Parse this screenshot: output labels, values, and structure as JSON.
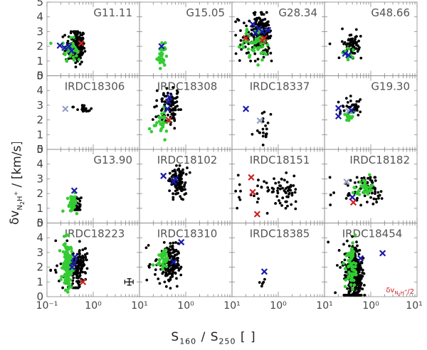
{
  "figure": {
    "xlabel": "S160 / S250 [ ]",
    "ylabel": "δv N2H+ / [km/s]",
    "xaxis_scale": "log",
    "xlim": [
      0.1,
      10
    ],
    "ylim": [
      0,
      5
    ],
    "x_tick_labels": [
      "10⁻¹",
      "10⁰",
      "10¹"
    ],
    "y_tick_labels": [
      "0",
      "1",
      "2",
      "3",
      "4",
      "5"
    ],
    "last_x_tick_label": "10¹",
    "errorbar_note": "typical uncertainty",
    "annotation": "δv N2H+ / 2"
  },
  "chart_data": {
    "type": "scatter",
    "layout": "4x4 grid of panels, shared axes",
    "xlabel": "S160 / S250 [ ]",
    "ylabel": "δv_N2H+ / [km/s]",
    "xlim": [
      0.1,
      10
    ],
    "ylim": [
      0,
      5
    ],
    "colors": {
      "black": "#000000",
      "green": "#33cc33",
      "blue": "#1a1aaa",
      "red": "#cc2222",
      "grey": "#9aa0c0"
    },
    "panels": [
      {
        "name": "G11.11",
        "label_align": "right",
        "black": {
          "count": 170,
          "xc": 0.45,
          "xs": 0.1,
          "yc": 2.0,
          "ys": 0.6,
          "ymin": 0.6,
          "ymax": 3.0
        },
        "green": {
          "count": 40,
          "xc": 0.33,
          "xs": 0.06,
          "yc": 1.8,
          "ys": 0.35
        },
        "blue_x": [
          [
            0.19,
            2.05
          ],
          [
            0.3,
            2.0
          ],
          [
            0.34,
            1.7
          ],
          [
            0.24,
            1.9
          ]
        ],
        "red_x": [
          [
            0.55,
            2.2
          ]
        ],
        "grey_x": []
      },
      {
        "name": "G15.05",
        "label_align": "right",
        "black": {
          "count": 0
        },
        "green": {
          "count": 34,
          "xc": 0.3,
          "xs": 0.03,
          "yc": 1.45,
          "ys": 0.45
        },
        "blue_x": [
          [
            0.3,
            2.0
          ]
        ],
        "red_x": [],
        "grey_x": []
      },
      {
        "name": "G28.34",
        "label_align": "right",
        "black": {
          "count": 210,
          "xc": 0.4,
          "xs": 0.14,
          "yc": 2.8,
          "ys": 0.7,
          "ymin": 1.0,
          "ymax": 4.3
        },
        "green": {
          "count": 55,
          "xc": 0.35,
          "xs": 0.1,
          "yc": 2.3,
          "ys": 0.55
        },
        "blue_x": [
          [
            0.28,
            3.5
          ],
          [
            0.32,
            2.9
          ],
          [
            0.45,
            3.0
          ],
          [
            0.38,
            3.2
          ],
          [
            0.6,
            3.1
          ]
        ],
        "red_x": [
          [
            0.2,
            2.55
          ],
          [
            0.45,
            2.4
          ],
          [
            0.5,
            2.55
          ]
        ],
        "grey_x": []
      },
      {
        "name": "G48.66",
        "label_align": "right",
        "black": {
          "count": 60,
          "xc": 0.4,
          "xs": 0.08,
          "yc": 2.0,
          "ys": 0.6,
          "ymin": 1.2,
          "ymax": 3.9
        },
        "green": {
          "count": 14,
          "xc": 0.32,
          "xs": 0.04,
          "yc": 1.45,
          "ys": 0.2
        },
        "blue_x": [
          [
            0.28,
            1.5
          ],
          [
            0.33,
            1.4
          ]
        ],
        "red_x": [],
        "grey_x": []
      },
      {
        "name": "IRDC18306",
        "label_align": "center",
        "black": {
          "count": 24,
          "xc": 0.6,
          "xs": 0.12,
          "yc": 2.8,
          "ys": 0.15,
          "ymin": 0.3,
          "ymax": 3.2
        },
        "green": {
          "count": 0
        },
        "blue_x": [],
        "red_x": [],
        "grey_x": [
          [
            0.25,
            2.75
          ]
        ]
      },
      {
        "name": "IRDC18308",
        "label_align": "center",
        "black": {
          "count": 95,
          "xc": 0.45,
          "xs": 0.12,
          "yc": 2.9,
          "ys": 0.7,
          "ymin": 1.2,
          "ymax": 4.3
        },
        "green": {
          "count": 28,
          "xc": 0.3,
          "xs": 0.04,
          "yc": 1.9,
          "ys": 0.45
        },
        "blue_x": [
          [
            0.45,
            3.55
          ],
          [
            0.4,
            2.75
          ],
          [
            0.42,
            3.25
          ]
        ],
        "red_x": [
          [
            0.43,
            2.0
          ]
        ],
        "grey_x": []
      },
      {
        "name": "IRDC18337",
        "label_align": "center",
        "black": {
          "count": 20,
          "xc": 0.5,
          "xs": 0.08,
          "yc": 1.6,
          "ys": 0.7,
          "ymin": 0.3,
          "ymax": 2.8
        },
        "green": {
          "count": 0
        },
        "blue_x": [
          [
            0.2,
            2.75
          ]
        ],
        "red_x": [],
        "grey_x": [
          [
            0.4,
            1.95
          ]
        ]
      },
      {
        "name": "G19.30",
        "label_align": "right",
        "black": {
          "count": 40,
          "xc": 0.4,
          "xs": 0.1,
          "yc": 2.7,
          "ys": 0.45,
          "ymin": 1.6,
          "ymax": 4.0
        },
        "green": {
          "count": 14,
          "xc": 0.35,
          "xs": 0.04,
          "yc": 2.3,
          "ys": 0.25
        },
        "blue_x": [
          [
            0.2,
            2.8
          ],
          [
            0.2,
            2.25
          ],
          [
            0.38,
            2.65
          ]
        ],
        "red_x": [],
        "grey_x": [
          [
            0.33,
            2.6
          ]
        ]
      },
      {
        "name": "G13.90",
        "label_align": "right",
        "black": {
          "count": 45,
          "xc": 0.42,
          "xs": 0.06,
          "yc": 1.3,
          "ys": 0.4,
          "ymin": 0.9,
          "ymax": 2.3
        },
        "green": {
          "count": 40,
          "xc": 0.35,
          "xs": 0.04,
          "yc": 1.35,
          "ys": 0.3
        },
        "blue_x": [
          [
            0.39,
            2.2
          ]
        ],
        "red_x": [],
        "grey_x": []
      },
      {
        "name": "IRDC18102",
        "label_align": "center",
        "black": {
          "count": 100,
          "xc": 0.7,
          "xs": 0.15,
          "yc": 2.8,
          "ys": 0.5,
          "ymin": 1.6,
          "ymax": 3.9
        },
        "green": {
          "count": 0
        },
        "blue_x": [
          [
            0.33,
            3.2
          ],
          [
            0.55,
            2.8
          ],
          [
            0.6,
            3.0
          ]
        ],
        "red_x": [],
        "grey_x": []
      },
      {
        "name": "IRDC18151",
        "label_align": "center",
        "black": {
          "count": 75,
          "xc": 1.0,
          "xs": 0.8,
          "yc": 2.1,
          "ys": 0.55,
          "ymin": 0.6,
          "ymax": 3.7
        },
        "green": {
          "count": 0
        },
        "blue_x": [],
        "red_x": [
          [
            0.26,
            3.1
          ],
          [
            0.28,
            2.1
          ],
          [
            0.35,
            0.6
          ]
        ],
        "grey_x": []
      },
      {
        "name": "IRDC18182",
        "label_align": "right",
        "black": {
          "count": 80,
          "xc": 0.9,
          "xs": 0.35,
          "yc": 2.3,
          "ys": 0.5,
          "ymin": 0.9,
          "ymax": 3.1
        },
        "green": {
          "count": 30,
          "xc": 0.7,
          "xs": 0.2,
          "yc": 2.3,
          "ys": 0.3
        },
        "blue_x": [
          [
            0.4,
            1.75
          ]
        ],
        "red_x": [
          [
            0.42,
            1.4
          ]
        ],
        "grey_x": [
          [
            0.3,
            2.8
          ]
        ]
      },
      {
        "name": "IRDC18223",
        "label_align": "center",
        "black": {
          "count": 140,
          "xc": 0.45,
          "xs": 0.14,
          "yc": 2.0,
          "ys": 0.7,
          "ymin": 0.6,
          "ymax": 3.8
        },
        "green": {
          "count": 140,
          "xc": 0.28,
          "xs": 0.03,
          "yc": 2.1,
          "ys": 0.8
        },
        "blue_x": [
          [
            0.4,
            2.7
          ],
          [
            0.35,
            2.0
          ],
          [
            0.38,
            2.3
          ]
        ],
        "red_x": [
          [
            0.6,
            1.0
          ]
        ],
        "grey_x": [],
        "errorbar": {
          "x": 6.0,
          "y": 1.0,
          "xerr_lo": 4.8,
          "xerr_hi": 7.3,
          "yerr": 0.22
        }
      },
      {
        "name": "IRDC18310",
        "label_align": "center",
        "black": {
          "count": 170,
          "xc": 0.45,
          "xs": 0.12,
          "yc": 2.2,
          "ys": 0.7,
          "ymin": 0.5,
          "ymax": 4.2
        },
        "green": {
          "count": 40,
          "xc": 0.33,
          "xs": 0.04,
          "yc": 2.6,
          "ys": 0.3
        },
        "blue_x": [
          [
            0.8,
            3.7
          ],
          [
            0.55,
            2.35
          ]
        ],
        "red_x": [],
        "grey_x": []
      },
      {
        "name": "IRDC18385",
        "label_align": "center",
        "black": {
          "count": 5,
          "xc": 0.45,
          "xs": 0.03,
          "yc": 1.4,
          "ys": 0.7,
          "ymin": 0.3,
          "ymax": 2.0
        },
        "green": {
          "count": 0
        },
        "blue_x": [
          [
            0.5,
            1.7
          ]
        ],
        "red_x": [],
        "grey_x": []
      },
      {
        "name": "IRDC18454",
        "label_align": "center",
        "black": {
          "count": 340,
          "xc": 0.45,
          "xs": 0.1,
          "yc": 1.6,
          "ys": 1.0,
          "ymin": 0.1,
          "ymax": 4.4
        },
        "green": {
          "count": 60,
          "xc": 0.38,
          "xs": 0.05,
          "yc": 2.0,
          "ys": 0.8
        },
        "blue_x": [
          [
            1.8,
            2.95
          ],
          [
            0.6,
            2.6
          ]
        ],
        "red_x": [],
        "grey_x": [],
        "annotation": true
      }
    ]
  }
}
